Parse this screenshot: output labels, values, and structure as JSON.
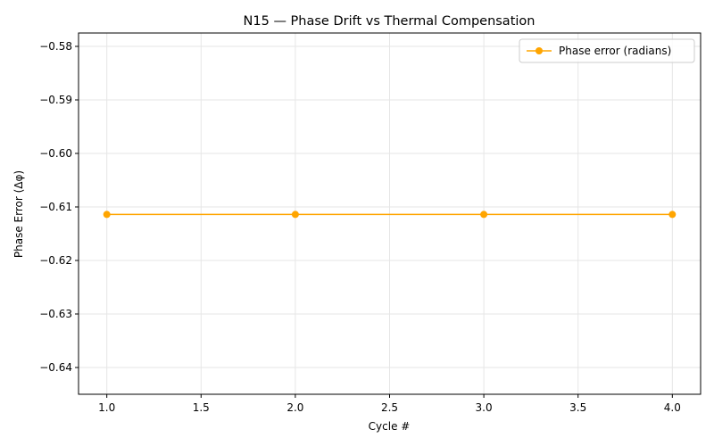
{
  "chart_data": {
    "type": "line",
    "title": "N15 — Phase Drift vs Thermal Compensation",
    "xlabel": "Cycle #",
    "ylabel": "Phase Error (Δφ)",
    "xlim": [
      0.85,
      4.15
    ],
    "ylim": [
      -0.645,
      -0.5775
    ],
    "xticks": [
      1.0,
      1.5,
      2.0,
      2.5,
      3.0,
      3.5,
      4.0
    ],
    "xtick_labels": [
      "1.0",
      "1.5",
      "2.0",
      "2.5",
      "3.0",
      "3.5",
      "4.0"
    ],
    "yticks": [
      -0.58,
      -0.59,
      -0.6,
      -0.61,
      -0.62,
      -0.63,
      -0.64
    ],
    "ytick_labels": [
      "−0.58",
      "−0.59",
      "−0.60",
      "−0.61",
      "−0.62",
      "−0.63",
      "−0.64"
    ],
    "grid": true,
    "legend_position": "top-right",
    "series": [
      {
        "name": "Phase error (radians)",
        "color": "#FFA500",
        "marker": "circle",
        "x": [
          1,
          2,
          3,
          4
        ],
        "y": [
          -0.6114,
          -0.6114,
          -0.6114,
          -0.6114
        ]
      }
    ]
  }
}
